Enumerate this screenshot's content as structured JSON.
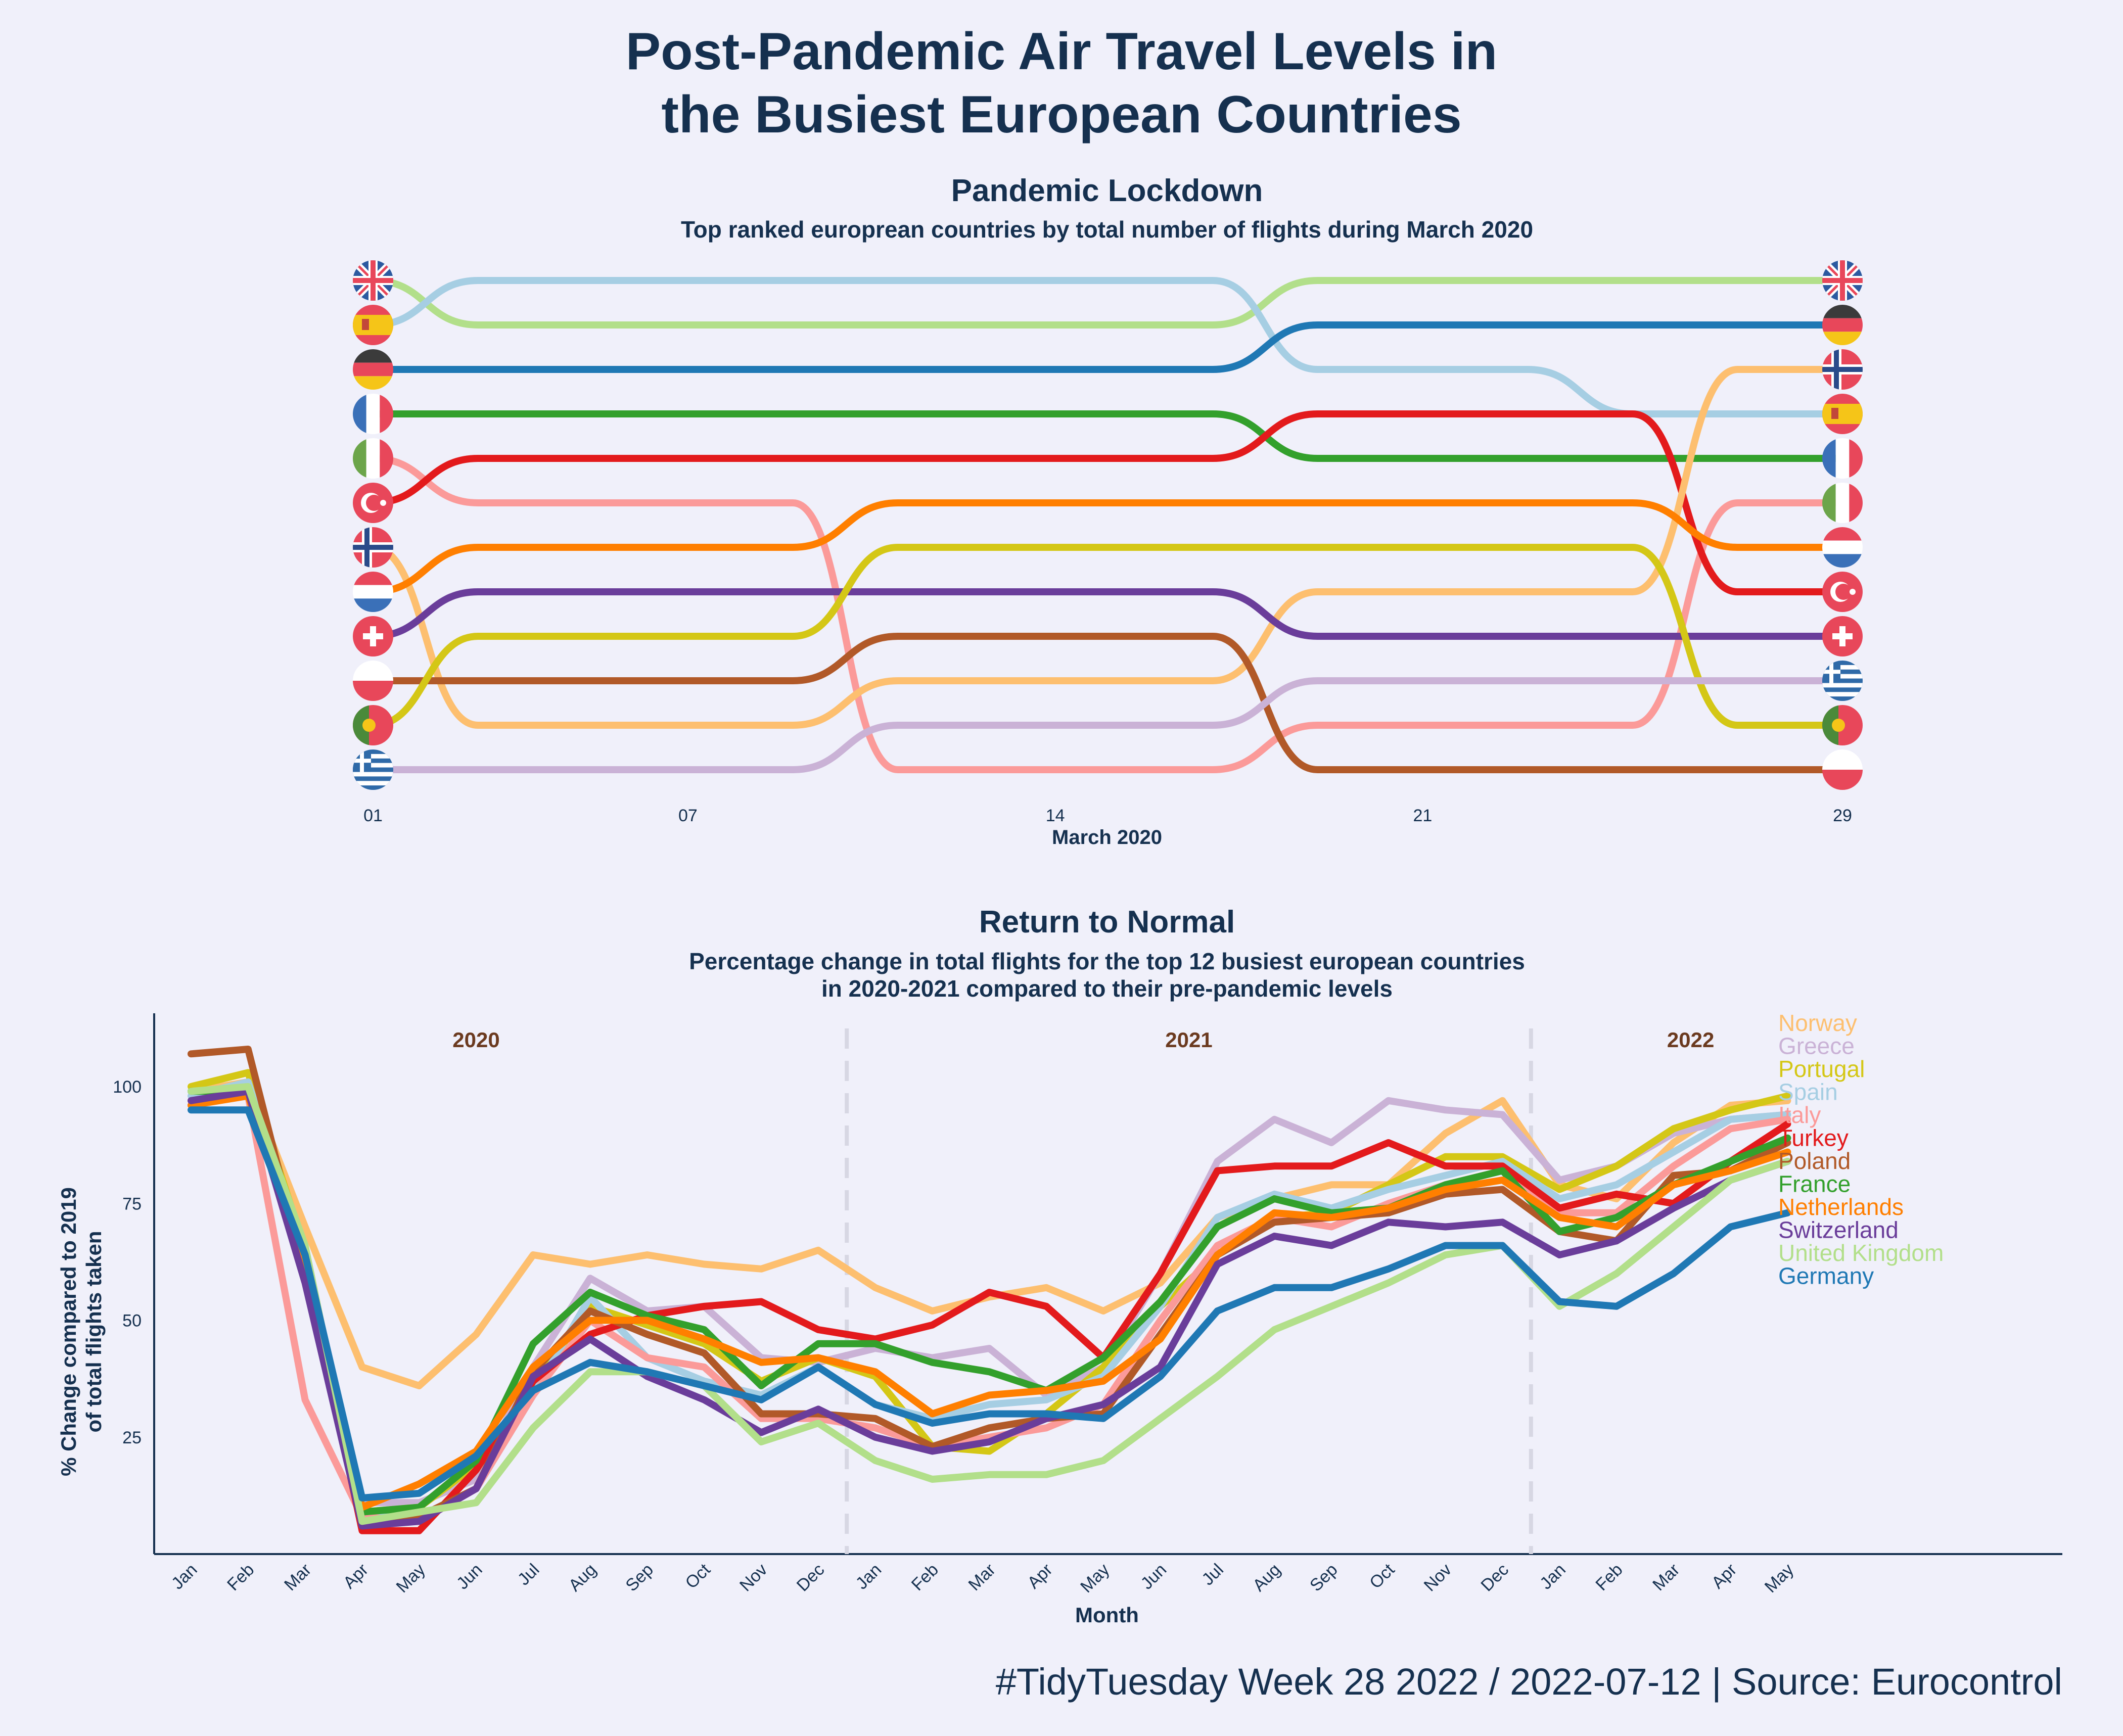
{
  "title": [
    "Post-Pandemic Air Travel Levels in",
    "the Busiest European Countries"
  ],
  "caption": "#TidyTuesday Week 28 2022 / 2022-07-12 | Source: Eurocontrol",
  "countries": [
    {
      "name": "United Kingdom",
      "color": "#b2df8a",
      "flag": "uk-flag"
    },
    {
      "name": "Spain",
      "color": "#a6cee3",
      "flag": "spain-flag"
    },
    {
      "name": "Germany",
      "color": "#1f78b4",
      "flag": "germany-flag"
    },
    {
      "name": "France",
      "color": "#33a02c",
      "flag": "france-flag"
    },
    {
      "name": "Italy",
      "color": "#fb9a99",
      "flag": "italy-flag"
    },
    {
      "name": "Turkey",
      "color": "#e31a1c",
      "flag": "turkey-flag"
    },
    {
      "name": "Norway",
      "color": "#fdbf6f",
      "flag": "norway-flag"
    },
    {
      "name": "Netherlands",
      "color": "#ff7f00",
      "flag": "netherlands-flag"
    },
    {
      "name": "Switzerland",
      "color": "#6a3d9a",
      "flag": "switzerland-flag"
    },
    {
      "name": "Poland",
      "color": "#b15928",
      "flag": "poland-flag"
    },
    {
      "name": "Portugal",
      "color": "#d4c716",
      "flag": "portugal-flag"
    },
    {
      "name": "Greece",
      "color": "#cab2d6",
      "flag": "greece-flag"
    }
  ],
  "chart_data": [
    {
      "type": "bump",
      "title": "Pandemic Lockdown",
      "subtitle": "Top ranked europrean countries by total number of flights during March 2020",
      "xlabel": "March 2020",
      "x_ticks": [
        "01",
        "07",
        "14",
        "21",
        "29"
      ],
      "x_tick_days": [
        1,
        7,
        14,
        21,
        29
      ],
      "days": [
        1,
        3,
        5,
        7,
        9,
        11,
        13,
        15,
        17,
        19,
        21,
        23,
        25,
        27,
        29
      ],
      "ranks": {
        "United Kingdom": [
          1,
          2,
          2,
          2,
          2,
          2,
          2,
          2,
          2,
          1,
          1,
          1,
          1,
          1,
          1
        ],
        "Spain": [
          2,
          1,
          1,
          1,
          1,
          1,
          1,
          1,
          1,
          3,
          3,
          3,
          4,
          4,
          4
        ],
        "Germany": [
          3,
          3,
          3,
          3,
          3,
          3,
          3,
          3,
          3,
          2,
          2,
          2,
          2,
          2,
          2
        ],
        "France": [
          4,
          4,
          4,
          4,
          4,
          4,
          4,
          4,
          4,
          5,
          5,
          5,
          5,
          5,
          5
        ],
        "Italy": [
          5,
          6,
          6,
          6,
          6,
          12,
          12,
          12,
          12,
          11,
          11,
          11,
          11,
          6,
          6
        ],
        "Turkey": [
          6,
          5,
          5,
          5,
          5,
          5,
          5,
          5,
          5,
          4,
          4,
          4,
          4,
          8,
          8
        ],
        "Norway": [
          7,
          11,
          11,
          11,
          11,
          10,
          10,
          10,
          10,
          8,
          8,
          8,
          8,
          3,
          3
        ],
        "Netherlands": [
          8,
          7,
          7,
          7,
          7,
          6,
          6,
          6,
          6,
          6,
          6,
          6,
          6,
          7,
          7
        ],
        "Switzerland": [
          9,
          8,
          8,
          8,
          8,
          8,
          8,
          8,
          8,
          9,
          9,
          9,
          9,
          9,
          9
        ],
        "Poland": [
          10,
          10,
          10,
          10,
          10,
          9,
          9,
          9,
          9,
          12,
          12,
          12,
          12,
          12,
          12
        ],
        "Portugal": [
          11,
          9,
          9,
          9,
          9,
          7,
          7,
          7,
          7,
          7,
          7,
          7,
          7,
          11,
          11
        ],
        "Greece": [
          12,
          12,
          12,
          12,
          12,
          11,
          11,
          11,
          11,
          10,
          10,
          10,
          10,
          10,
          10
        ]
      }
    },
    {
      "type": "line",
      "title": "Return to Normal",
      "subtitle": [
        "Percentage change in total flights for the top 12 busiest european countries",
        "in 2020-2021 compared to their pre-pandemic levels"
      ],
      "xlabel": "Month",
      "ylabel": [
        "% Change compared to 2019",
        "of total flights taken"
      ],
      "y_ticks": [
        25,
        50,
        75,
        100
      ],
      "ylim": [
        0,
        115
      ],
      "years": [
        "2020",
        "2021",
        "2022"
      ],
      "x": [
        "Jan",
        "Feb",
        "Mar",
        "Apr",
        "May",
        "Jun",
        "Jul",
        "Aug",
        "Sep",
        "Oct",
        "Nov",
        "Dec",
        "Jan",
        "Feb",
        "Mar",
        "Apr",
        "May",
        "Jun",
        "Jul",
        "Aug",
        "Sep",
        "Oct",
        "Nov",
        "Dec",
        "Jan",
        "Feb",
        "Mar",
        "Apr",
        "May"
      ],
      "legend_order": [
        "Norway",
        "Greece",
        "Portugal",
        "Spain",
        "Italy",
        "Turkey",
        "Poland",
        "France",
        "Netherlands",
        "Switzerland",
        "United Kingdom",
        "Germany"
      ],
      "series": [
        {
          "name": "Norway",
          "values": [
            99,
            101,
            70,
            40,
            36,
            47,
            64,
            62,
            64,
            62,
            61,
            65,
            57,
            52,
            55,
            57,
            52,
            58,
            72,
            76,
            79,
            79,
            90,
            97,
            79,
            76,
            88,
            96,
            97
          ]
        },
        {
          "name": "Greece",
          "values": [
            99,
            100,
            60,
            11,
            11,
            16,
            40,
            59,
            52,
            53,
            42,
            41,
            44,
            42,
            44,
            34,
            40,
            60,
            84,
            93,
            88,
            97,
            95,
            94,
            80,
            83,
            90,
            93,
            94
          ]
        },
        {
          "name": "Portugal",
          "values": [
            100,
            103,
            65,
            9,
            10,
            19,
            36,
            53,
            49,
            45,
            37,
            42,
            38,
            23,
            22,
            30,
            40,
            53,
            64,
            72,
            73,
            79,
            85,
            85,
            78,
            83,
            91,
            95,
            98
          ]
        },
        {
          "name": "Spain",
          "values": [
            98,
            101,
            63,
            8,
            8,
            14,
            34,
            55,
            42,
            37,
            34,
            40,
            32,
            29,
            32,
            33,
            38,
            53,
            72,
            77,
            74,
            78,
            81,
            84,
            76,
            79,
            86,
            93,
            94
          ]
        },
        {
          "name": "Italy",
          "values": [
            97,
            98,
            33,
            8,
            7,
            14,
            34,
            50,
            42,
            40,
            29,
            29,
            27,
            23,
            25,
            27,
            32,
            50,
            66,
            72,
            70,
            75,
            79,
            82,
            73,
            73,
            83,
            91,
            93
          ]
        },
        {
          "name": "Turkey",
          "values": [
            96,
            99,
            62,
            5,
            5,
            18,
            37,
            47,
            51,
            53,
            54,
            48,
            46,
            49,
            56,
            53,
            42,
            60,
            82,
            83,
            83,
            88,
            83,
            83,
            74,
            77,
            75,
            84,
            92
          ]
        },
        {
          "name": "Poland",
          "values": [
            107,
            108,
            60,
            7,
            8,
            14,
            39,
            52,
            47,
            43,
            30,
            30,
            29,
            23,
            27,
            29,
            30,
            47,
            64,
            71,
            72,
            73,
            77,
            78,
            69,
            67,
            81,
            82,
            88
          ]
        },
        {
          "name": "France",
          "values": [
            99,
            99,
            61,
            9,
            10,
            20,
            45,
            56,
            51,
            48,
            36,
            45,
            45,
            41,
            39,
            35,
            42,
            54,
            70,
            76,
            73,
            74,
            79,
            82,
            69,
            72,
            79,
            84,
            89
          ]
        },
        {
          "name": "Netherlands",
          "values": [
            96,
            98,
            62,
            10,
            15,
            22,
            40,
            50,
            50,
            46,
            41,
            42,
            39,
            30,
            34,
            35,
            37,
            46,
            64,
            73,
            72,
            74,
            78,
            80,
            72,
            70,
            79,
            82,
            86
          ]
        },
        {
          "name": "Switzerland",
          "values": [
            97,
            99,
            58,
            6,
            7,
            14,
            38,
            46,
            38,
            33,
            26,
            31,
            25,
            22,
            24,
            29,
            32,
            40,
            62,
            68,
            66,
            71,
            70,
            71,
            64,
            67,
            74,
            80,
            84
          ]
        },
        {
          "name": "United Kingdom",
          "values": [
            99,
            100,
            66,
            7,
            9,
            11,
            27,
            39,
            39,
            36,
            24,
            28,
            20,
            16,
            17,
            17,
            20,
            29,
            38,
            48,
            53,
            58,
            64,
            66,
            53,
            60,
            70,
            80,
            84
          ]
        },
        {
          "name": "Germany",
          "values": [
            95,
            95,
            64,
            12,
            13,
            21,
            35,
            41,
            39,
            36,
            33,
            40,
            32,
            28,
            30,
            30,
            29,
            38,
            52,
            57,
            57,
            61,
            66,
            66,
            54,
            53,
            60,
            70,
            73
          ]
        }
      ]
    }
  ]
}
